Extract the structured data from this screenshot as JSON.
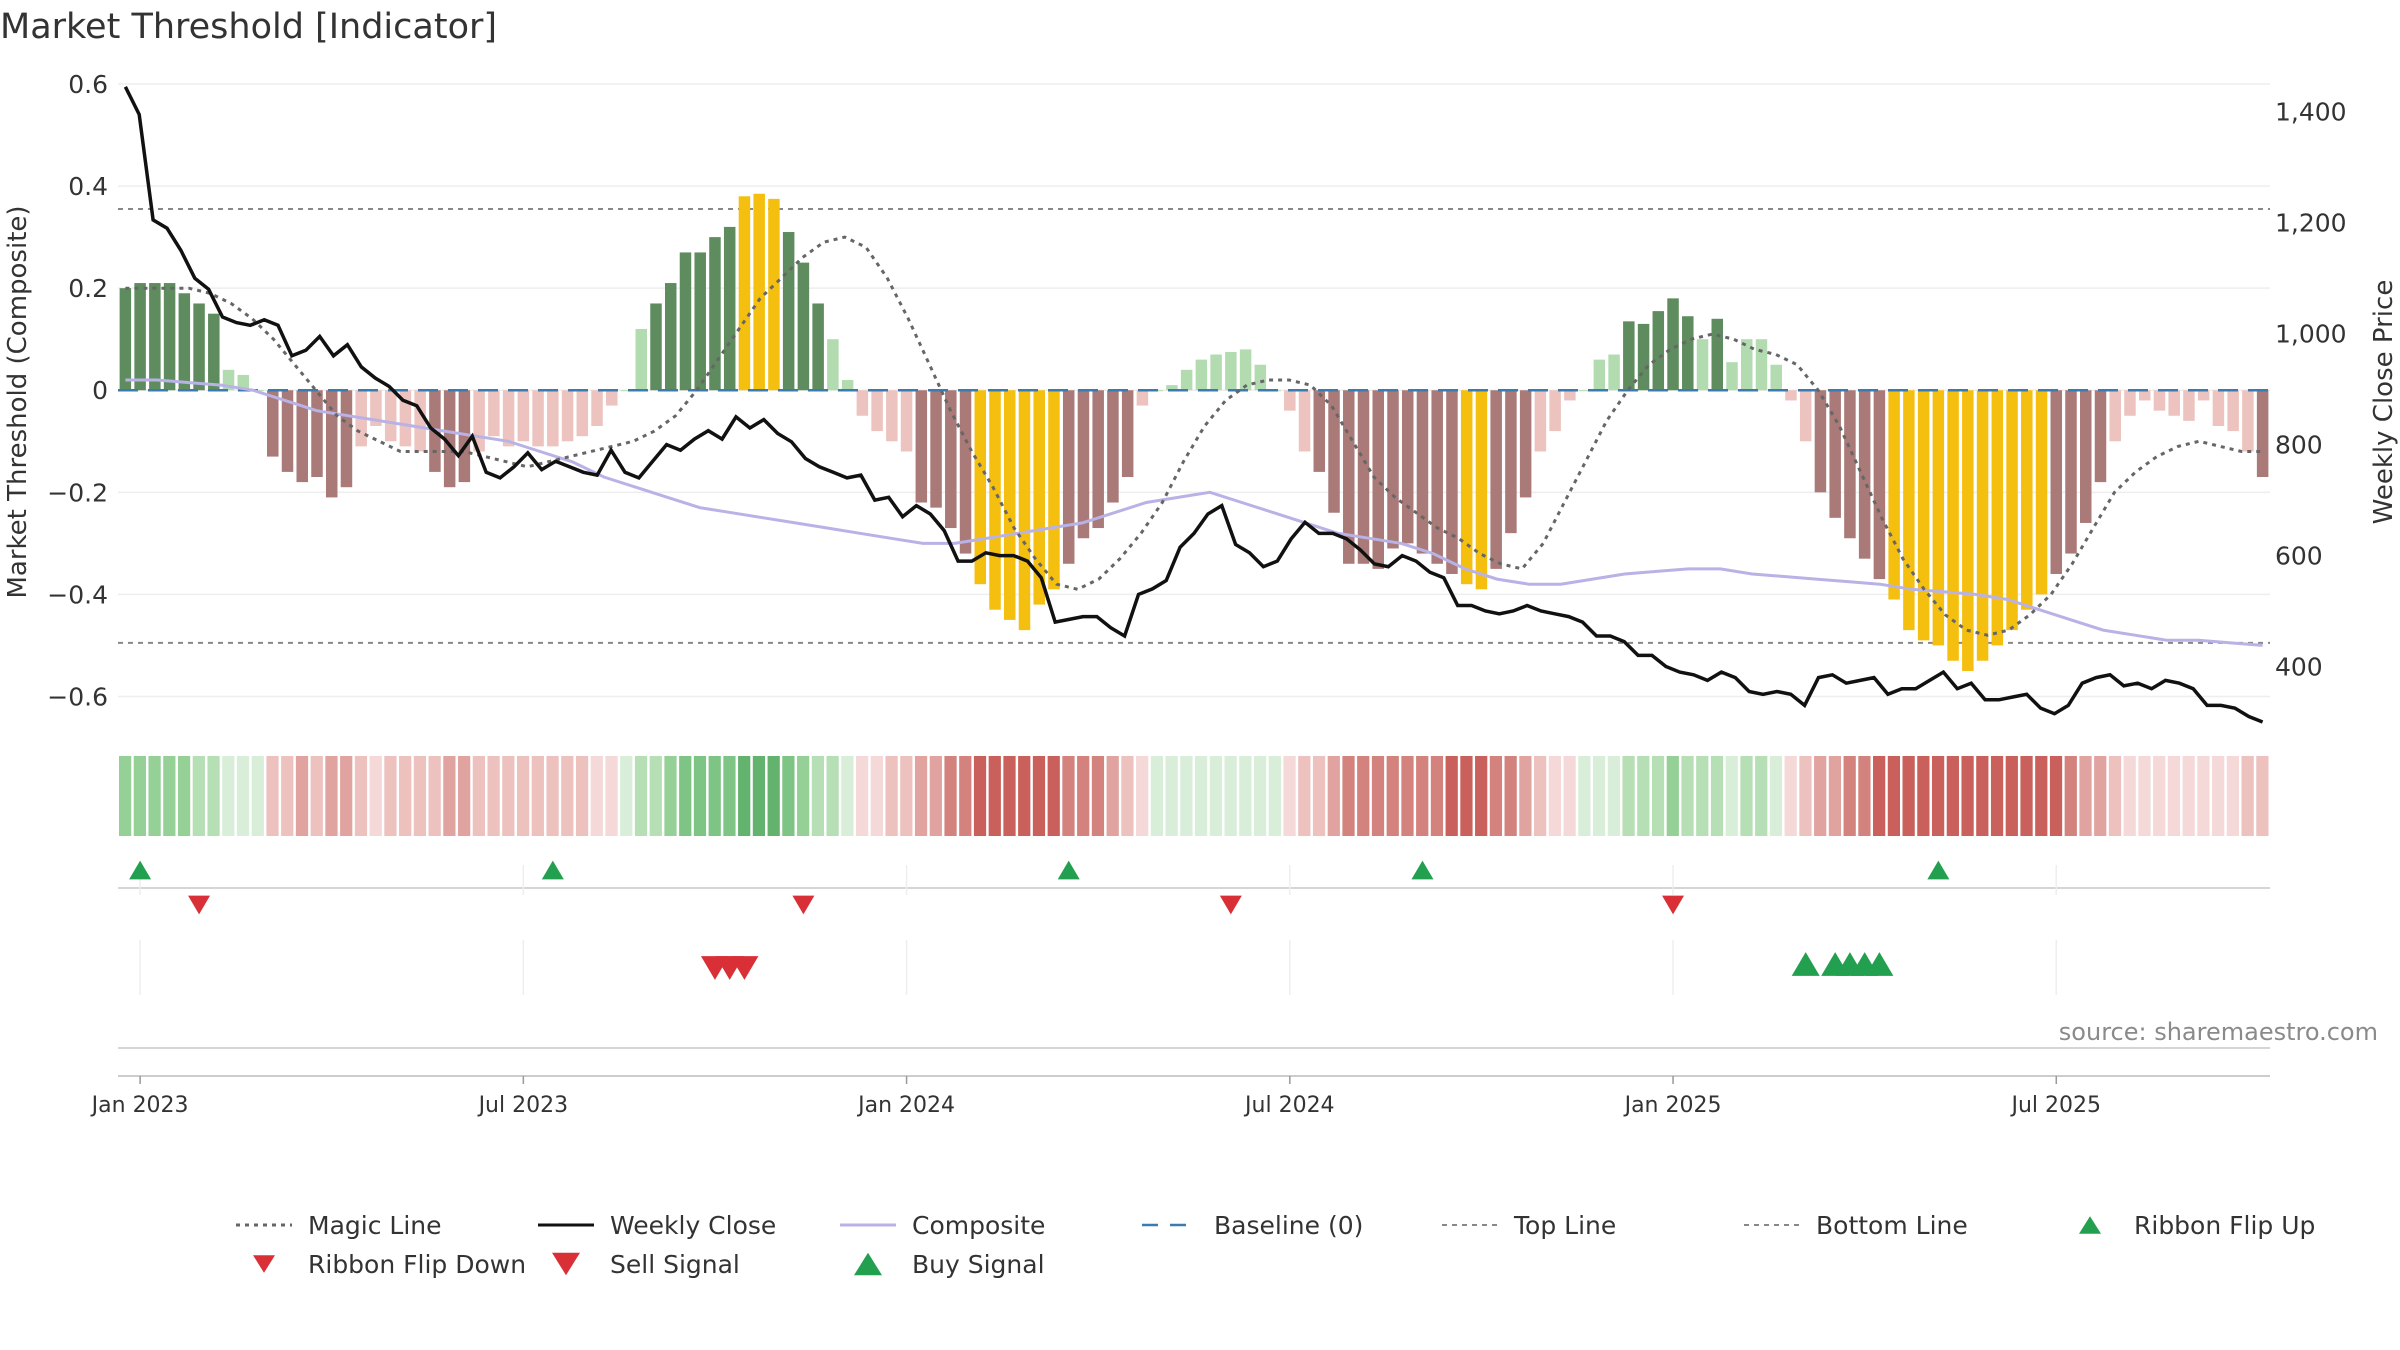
{
  "chart_data": {
    "type": "bar",
    "title": "Market Threshold [Indicator]",
    "ylabel": "Market Threshold (Composite)",
    "y2label": "Weekly Close Price",
    "source": "source: sharemaestro.com",
    "ylim": [
      -0.65,
      0.6
    ],
    "y2lim": [
      300,
      1450
    ],
    "yticks": [
      {
        "v": 0.6,
        "label": "0.6"
      },
      {
        "v": 0.4,
        "label": "0.4"
      },
      {
        "v": 0.2,
        "label": "0.2"
      },
      {
        "v": 0,
        "label": "0"
      },
      {
        "v": -0.2,
        "label": "−0.2"
      },
      {
        "v": -0.4,
        "label": "−0.4"
      },
      {
        "v": -0.6,
        "label": "−0.6"
      }
    ],
    "y2ticks": [
      {
        "v": 1400,
        "label": "1,400"
      },
      {
        "v": 1200,
        "label": "1,200"
      },
      {
        "v": 1000,
        "label": "1,000"
      },
      {
        "v": 800,
        "label": "800"
      },
      {
        "v": 600,
        "label": "600"
      },
      {
        "v": 400,
        "label": "400"
      }
    ],
    "x_dates": [
      {
        "i": 1,
        "label": "Jan 2023"
      },
      {
        "i": 27,
        "label": "Jul 2023"
      },
      {
        "i": 53,
        "label": "Jan 2024"
      },
      {
        "i": 79,
        "label": "Jul 2024"
      },
      {
        "i": 105,
        "label": "Jan 2025"
      },
      {
        "i": 131,
        "label": "Jul 2025"
      }
    ],
    "top_line": 0.355,
    "bottom_line": -0.495,
    "bar_values": [
      0.2,
      0.21,
      0.21,
      0.21,
      0.19,
      0.17,
      0.15,
      0.04,
      0.03,
      0,
      -0.13,
      -0.16,
      -0.18,
      -0.17,
      -0.21,
      -0.19,
      -0.11,
      -0.07,
      -0.1,
      -0.11,
      -0.12,
      -0.16,
      -0.19,
      -0.18,
      -0.12,
      -0.09,
      -0.11,
      -0.1,
      -0.11,
      -0.11,
      -0.1,
      -0.09,
      -0.07,
      -0.03,
      0,
      0.12,
      0.17,
      0.21,
      0.27,
      0.27,
      0.3,
      0.32,
      0.38,
      0.385,
      0.375,
      0.31,
      0.25,
      0.17,
      0.1,
      0.02,
      -0.05,
      -0.08,
      -0.1,
      -0.12,
      -0.22,
      -0.23,
      -0.27,
      -0.32,
      -0.38,
      -0.43,
      -0.45,
      -0.47,
      -0.42,
      -0.39,
      -0.34,
      -0.29,
      -0.27,
      -0.22,
      -0.17,
      -0.03,
      0,
      0.01,
      0.04,
      0.06,
      0.07,
      0.075,
      0.08,
      0.05,
      0,
      -0.04,
      -0.12,
      -0.16,
      -0.24,
      -0.34,
      -0.34,
      -0.35,
      -0.31,
      -0.3,
      -0.32,
      -0.34,
      -0.36,
      -0.38,
      -0.39,
      -0.35,
      -0.28,
      -0.21,
      -0.12,
      -0.08,
      -0.02,
      0,
      0.06,
      0.07,
      0.135,
      0.13,
      0.155,
      0.18,
      0.145,
      0.1,
      0.14,
      0.055,
      0.1,
      0.1,
      0.05,
      -0.02,
      -0.1,
      -0.2,
      -0.25,
      -0.29,
      -0.33,
      -0.37,
      -0.41,
      -0.47,
      -0.49,
      -0.5,
      -0.53,
      -0.55,
      -0.53,
      -0.5,
      -0.47,
      -0.43,
      -0.4,
      -0.36,
      -0.32,
      -0.26,
      -0.18,
      -0.1,
      -0.05,
      -0.02,
      -0.04,
      -0.05,
      -0.06,
      -0.02,
      -0.07,
      -0.08,
      -0.12,
      -0.17
    ],
    "weekly_close": [
      1445,
      1395,
      1205,
      1190,
      1150,
      1100,
      1080,
      1030,
      1020,
      1015,
      1025,
      1015,
      960,
      970,
      995,
      960,
      980,
      940,
      920,
      905,
      880,
      870,
      830,
      810,
      780,
      815,
      750,
      740,
      760,
      785,
      755,
      770,
      760,
      750,
      745,
      790,
      750,
      740,
      770,
      800,
      790,
      810,
      825,
      810,
      850,
      830,
      845,
      820,
      805,
      775,
      760,
      750,
      740,
      745,
      700,
      705,
      670,
      690,
      675,
      645,
      590,
      590,
      605,
      600,
      600,
      590,
      560,
      480,
      485,
      490,
      490,
      470,
      455,
      530,
      540,
      555,
      615,
      640,
      675,
      690,
      620,
      605,
      580,
      590,
      630,
      660,
      640,
      640,
      630,
      610,
      585,
      580,
      600,
      590,
      570,
      560,
      510,
      510,
      500,
      495,
      500,
      510,
      500,
      495,
      490,
      480,
      455,
      455,
      445,
      420,
      420,
      400,
      390,
      385,
      375,
      390,
      380,
      355,
      350,
      355,
      350,
      330,
      380,
      385,
      370,
      375,
      380,
      350,
      360,
      360,
      375,
      390,
      360,
      370,
      340,
      340,
      345,
      350,
      325,
      315,
      330,
      370,
      380,
      385,
      365,
      370,
      360,
      375,
      370,
      360,
      330,
      330,
      325,
      310,
      300
    ],
    "composite": [
      0.02,
      0.02,
      0.015,
      0.01,
      0.0,
      -0.02,
      -0.04,
      -0.05,
      -0.06,
      -0.07,
      -0.08,
      -0.09,
      -0.1,
      -0.12,
      -0.14,
      -0.17,
      -0.19,
      -0.21,
      -0.23,
      -0.24,
      -0.25,
      -0.26,
      -0.27,
      -0.28,
      -0.29,
      -0.3,
      -0.3,
      -0.29,
      -0.28,
      -0.27,
      -0.26,
      -0.24,
      -0.22,
      -0.21,
      -0.2,
      -0.22,
      -0.24,
      -0.26,
      -0.28,
      -0.29,
      -0.3,
      -0.32,
      -0.35,
      -0.37,
      -0.38,
      -0.38,
      -0.37,
      -0.36,
      -0.355,
      -0.35,
      -0.35,
      -0.36,
      -0.365,
      -0.37,
      -0.375,
      -0.38,
      -0.39,
      -0.395,
      -0.4,
      -0.41,
      -0.43,
      -0.45,
      -0.47,
      -0.48,
      -0.49,
      -0.49,
      -0.495,
      -0.5
    ],
    "magic_line": [
      0.2,
      0.2,
      0.2,
      0.2,
      0.19,
      0.17,
      0.14,
      0.1,
      0.05,
      0,
      -0.05,
      -0.08,
      -0.1,
      -0.12,
      -0.12,
      -0.12,
      -0.12,
      -0.13,
      -0.14,
      -0.15,
      -0.14,
      -0.13,
      -0.12,
      -0.11,
      -0.1,
      -0.08,
      -0.05,
      0,
      0.06,
      0.12,
      0.18,
      0.22,
      0.26,
      0.29,
      0.3,
      0.28,
      0.22,
      0.14,
      0.05,
      -0.04,
      -0.12,
      -0.19,
      -0.27,
      -0.33,
      -0.38,
      -0.39,
      -0.37,
      -0.33,
      -0.28,
      -0.22,
      -0.14,
      -0.07,
      -0.02,
      0.01,
      0.02,
      0.02,
      0.01,
      -0.03,
      -0.1,
      -0.17,
      -0.21,
      -0.24,
      -0.27,
      -0.29,
      -0.32,
      -0.34,
      -0.35,
      -0.3,
      -0.22,
      -0.14,
      -0.06,
      0.0,
      0.05,
      0.08,
      0.1,
      0.11,
      0.1,
      0.08,
      0.07,
      0.05,
      0.0,
      -0.07,
      -0.16,
      -0.25,
      -0.33,
      -0.39,
      -0.44,
      -0.47,
      -0.48,
      -0.47,
      -0.44,
      -0.4,
      -0.34,
      -0.27,
      -0.2,
      -0.16,
      -0.13,
      -0.11,
      -0.1,
      -0.11,
      -0.12,
      -0.12
    ],
    "ribbon_flip_up_x": [
      1,
      29,
      64,
      88,
      123
    ],
    "ribbon_flip_down_x": [
      5,
      46,
      75,
      105
    ],
    "sell_signal_x": [
      40,
      41,
      42
    ],
    "buy_signal_x": [
      114,
      116,
      117,
      118,
      119
    ],
    "legend": [
      {
        "key": "magic",
        "label": "Magic Line"
      },
      {
        "key": "weekly",
        "label": "Weekly Close"
      },
      {
        "key": "composite",
        "label": "Composite"
      },
      {
        "key": "baseline",
        "label": "Baseline (0)"
      },
      {
        "key": "top",
        "label": "Top Line"
      },
      {
        "key": "bottom",
        "label": "Bottom Line"
      },
      {
        "key": "flipup",
        "label": "Ribbon Flip Up"
      },
      {
        "key": "flipdown",
        "label": "Ribbon Flip Down"
      },
      {
        "key": "sell",
        "label": "Sell Signal"
      },
      {
        "key": "buy",
        "label": "Buy Signal"
      }
    ],
    "colors": {
      "pos_dark": "#5e8c5e",
      "pos_light": "#b2dcb0",
      "neg_dark": "#a97a78",
      "neg_light": "#ecc3bf",
      "extreme": "#f5bf10",
      "weekly": "#111111",
      "composite": "#b8b2e6",
      "magic": "#666666",
      "baseline": "#3b7bb0",
      "refline": "#888888",
      "up": "#22a050",
      "down": "#d93038"
    }
  }
}
